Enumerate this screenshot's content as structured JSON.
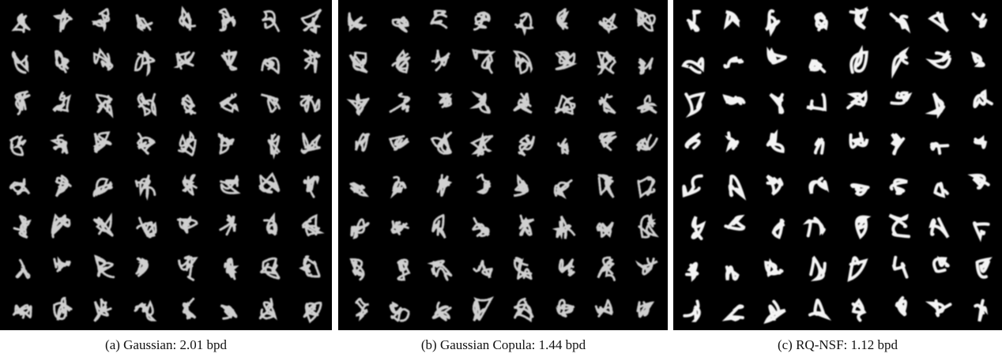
{
  "figure": {
    "panels": [
      {
        "caption": "(a) Gaussian: 2.01 bpd"
      },
      {
        "caption": "(b) Gaussian Copula: 1.44 bpd"
      },
      {
        "caption": "(c) RQ-NSF: 1.12 bpd"
      }
    ]
  }
}
